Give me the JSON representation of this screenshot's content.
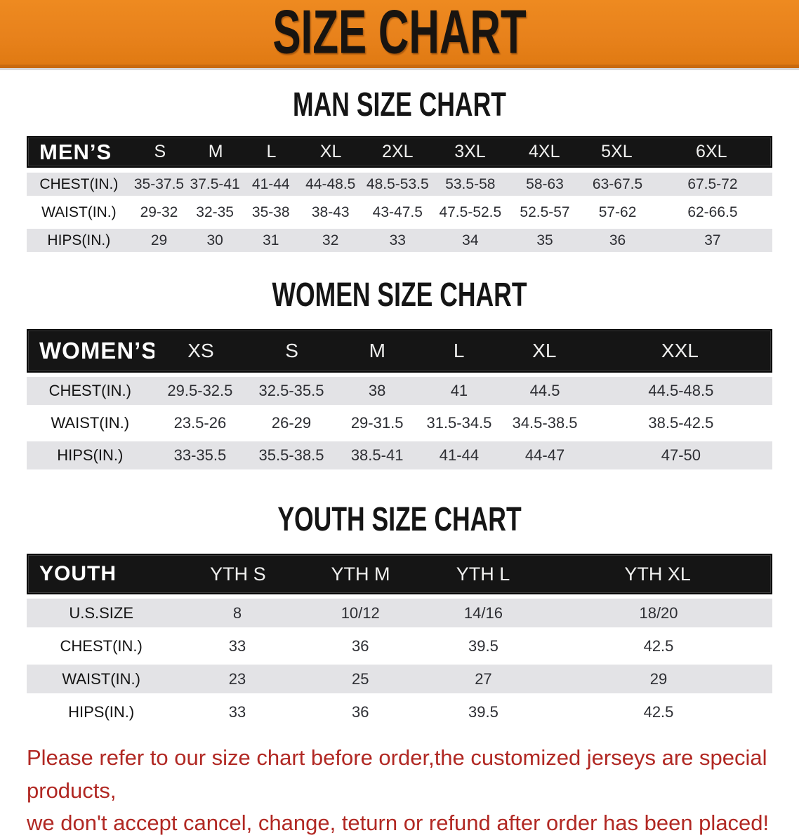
{
  "banner": {
    "title": "SIZE CHART"
  },
  "colors": {
    "banner_orange": "#e8821c",
    "banner_orange_dark": "#c96a0e",
    "header_black": "#151515",
    "row_gray": "#e3e3e6",
    "row_white": "#ffffff",
    "disclaimer_red": "#b12823"
  },
  "men": {
    "heading": "MAN SIZE CHART",
    "header": [
      "MEN’S",
      "S",
      "M",
      "L",
      "XL",
      "2XL",
      "3XL",
      "4XL",
      "5XL",
      "6XL"
    ],
    "rows": [
      {
        "label": "CHEST(IN.)",
        "cells": [
          "35-37.5",
          "37.5-41",
          "41-44",
          "44-48.5",
          "48.5-53.5",
          "53.5-58",
          "58-63",
          "63-67.5",
          "67.5-72"
        ]
      },
      {
        "label": "WAIST(IN.)",
        "cells": [
          "29-32",
          "32-35",
          "35-38",
          "38-43",
          "43-47.5",
          "47.5-52.5",
          "52.5-57",
          "57-62",
          "62-66.5"
        ]
      },
      {
        "label": "HIPS(IN.)",
        "cells": [
          "29",
          "30",
          "31",
          "32",
          "33",
          "34",
          "35",
          "36",
          "37"
        ]
      }
    ]
  },
  "women": {
    "heading": "WOMEN SIZE CHART",
    "header": [
      "WOMEN’S",
      "XS",
      "S",
      "M",
      "L",
      "XL",
      "XXL"
    ],
    "rows": [
      {
        "label": "CHEST(IN.)",
        "cells": [
          "29.5-32.5",
          "32.5-35.5",
          "38",
          "41",
          "44.5",
          "44.5-48.5"
        ]
      },
      {
        "label": "WAIST(IN.)",
        "cells": [
          "23.5-26",
          "26-29",
          "29-31.5",
          "31.5-34.5",
          "34.5-38.5",
          "38.5-42.5"
        ]
      },
      {
        "label": "HIPS(IN.)",
        "cells": [
          "33-35.5",
          "35.5-38.5",
          "38.5-41",
          "41-44",
          "44-47",
          "47-50"
        ]
      }
    ]
  },
  "youth": {
    "heading": "YOUTH SIZE CHART",
    "header": [
      "YOUTH",
      "YTH S",
      "YTH M",
      "YTH L",
      "YTH XL"
    ],
    "rows": [
      {
        "label": "U.S.SIZE",
        "cells": [
          "8",
          "10/12",
          "14/16",
          "18/20"
        ]
      },
      {
        "label": "CHEST(IN.)",
        "cells": [
          "33",
          "36",
          "39.5",
          "42.5"
        ]
      },
      {
        "label": "WAIST(IN.)",
        "cells": [
          "23",
          "25",
          "27",
          "29"
        ]
      },
      {
        "label": "HIPS(IN.)",
        "cells": [
          "33",
          "36",
          "39.5",
          "42.5"
        ]
      }
    ]
  },
  "disclaimer": {
    "line1": "Please refer to our size chart before order,the customized jerseys are special products,",
    "line2": "we don't accept cancel, change, teturn or refund after order has been placed!"
  }
}
